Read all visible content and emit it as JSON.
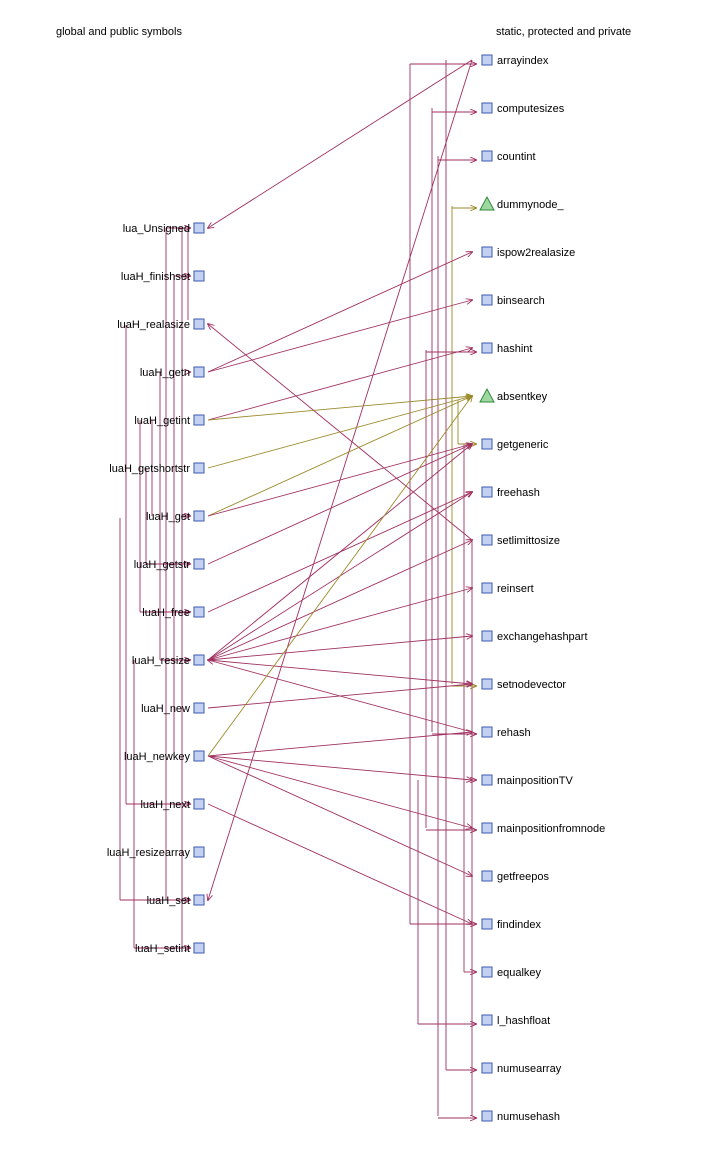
{
  "headers": {
    "left": "global and public symbols",
    "right": "static, protected and private"
  },
  "left_symbols": [
    {
      "id": "lua_Unsigned",
      "label": "lua_Unsigned"
    },
    {
      "id": "luaH_finishset",
      "label": "luaH_finishset"
    },
    {
      "id": "luaH_realasize",
      "label": "luaH_realasize"
    },
    {
      "id": "luaH_getn",
      "label": "luaH_getn"
    },
    {
      "id": "luaH_getint",
      "label": "luaH_getint"
    },
    {
      "id": "luaH_getshortstr",
      "label": "luaH_getshortstr"
    },
    {
      "id": "luaH_get",
      "label": "luaH_get"
    },
    {
      "id": "luaH_getstr",
      "label": "luaH_getstr"
    },
    {
      "id": "luaH_free",
      "label": "luaH_free"
    },
    {
      "id": "luaH_resize",
      "label": "luaH_resize"
    },
    {
      "id": "luaH_new",
      "label": "luaH_new"
    },
    {
      "id": "luaH_newkey",
      "label": "luaH_newkey"
    },
    {
      "id": "luaH_next",
      "label": "luaH_next"
    },
    {
      "id": "luaH_resizearray",
      "label": "luaH_resizearray"
    },
    {
      "id": "luaH_set",
      "label": "luaH_set"
    },
    {
      "id": "luaH_setint",
      "label": "luaH_setint"
    }
  ],
  "right_symbols": [
    {
      "id": "arrayindex",
      "label": "arrayindex",
      "shape": "square"
    },
    {
      "id": "computesizes",
      "label": "computesizes",
      "shape": "square"
    },
    {
      "id": "countint",
      "label": "countint",
      "shape": "square"
    },
    {
      "id": "dummynode_",
      "label": "dummynode_",
      "shape": "triangle"
    },
    {
      "id": "ispow2realasize",
      "label": "ispow2realasize",
      "shape": "square"
    },
    {
      "id": "binsearch",
      "label": "binsearch",
      "shape": "square"
    },
    {
      "id": "hashint",
      "label": "hashint",
      "shape": "square"
    },
    {
      "id": "absentkey",
      "label": "absentkey",
      "shape": "triangle"
    },
    {
      "id": "getgeneric",
      "label": "getgeneric",
      "shape": "square"
    },
    {
      "id": "freehash",
      "label": "freehash",
      "shape": "square"
    },
    {
      "id": "setlimittosize",
      "label": "setlimittosize",
      "shape": "square"
    },
    {
      "id": "reinsert",
      "label": "reinsert",
      "shape": "square"
    },
    {
      "id": "exchangehashpart",
      "label": "exchangehashpart",
      "shape": "square"
    },
    {
      "id": "setnodevector",
      "label": "setnodevector",
      "shape": "square"
    },
    {
      "id": "rehash",
      "label": "rehash",
      "shape": "square"
    },
    {
      "id": "mainpositionTV",
      "label": "mainpositionTV",
      "shape": "square"
    },
    {
      "id": "mainpositionfromnode",
      "label": "mainpositionfromnode",
      "shape": "square"
    },
    {
      "id": "getfreepos",
      "label": "getfreepos",
      "shape": "square"
    },
    {
      "id": "findindex",
      "label": "findindex",
      "shape": "square"
    },
    {
      "id": "equalkey",
      "label": "equalkey",
      "shape": "square"
    },
    {
      "id": "l_hashfloat",
      "label": "l_hashfloat",
      "shape": "square"
    },
    {
      "id": "numusearray",
      "label": "numusearray",
      "shape": "square"
    },
    {
      "id": "numusehash",
      "label": "numusehash",
      "shape": "square"
    }
  ],
  "colors": {
    "edge": "#a03060",
    "data_edge": "#9a8a2a",
    "function_node": "#c4d2f0",
    "variable_node": "#9fd7a0"
  },
  "edges": [
    {
      "from": "arrayindex",
      "to": "lua_Unsigned"
    },
    {
      "from": "setlimittosize",
      "to": "luaH_realasize"
    },
    {
      "from": "arrayindex",
      "to": "luaH_set"
    },
    {
      "from": "luaH_getn",
      "to": "ispow2realasize"
    },
    {
      "from": "luaH_getn",
      "to": "binsearch"
    },
    {
      "from": "luaH_getint",
      "to": "hashint"
    },
    {
      "from": "luaH_getint",
      "to": "absentkey",
      "kind": "data"
    },
    {
      "from": "luaH_getshortstr",
      "to": "absentkey",
      "kind": "data"
    },
    {
      "from": "luaH_get",
      "to": "absentkey",
      "kind": "data"
    },
    {
      "from": "luaH_get",
      "to": "getgeneric"
    },
    {
      "from": "luaH_getstr",
      "to": "getgeneric"
    },
    {
      "from": "luaH_free",
      "to": "freehash"
    },
    {
      "from": "luaH_resize",
      "to": "freehash"
    },
    {
      "from": "luaH_resize",
      "to": "setlimittosize"
    },
    {
      "from": "luaH_resize",
      "to": "reinsert"
    },
    {
      "from": "luaH_resize",
      "to": "exchangehashpart"
    },
    {
      "from": "luaH_resize",
      "to": "setnodevector"
    },
    {
      "from": "luaH_resize",
      "to": "getgeneric"
    },
    {
      "from": "rehash",
      "to": "luaH_resize"
    },
    {
      "from": "luaH_new",
      "to": "setnodevector"
    },
    {
      "from": "luaH_newkey",
      "to": "rehash"
    },
    {
      "from": "luaH_newkey",
      "to": "mainpositionTV"
    },
    {
      "from": "luaH_newkey",
      "to": "mainpositionfromnode"
    },
    {
      "from": "luaH_newkey",
      "to": "getfreepos"
    },
    {
      "from": "luaH_next",
      "to": "findindex"
    },
    {
      "from": "luaH_newkey",
      "to": "absentkey",
      "kind": "data"
    }
  ]
}
